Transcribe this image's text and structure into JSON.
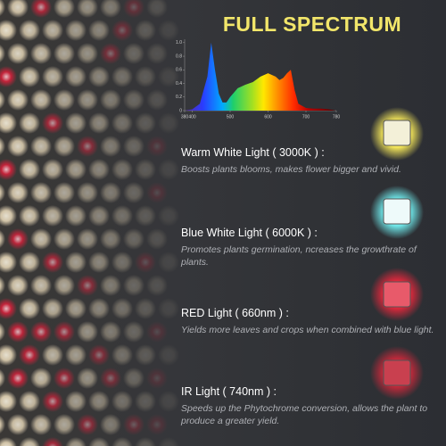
{
  "title": "FULL SPECTRUM",
  "chart_data": {
    "type": "area",
    "x": [
      380,
      400,
      420,
      440,
      450,
      460,
      470,
      480,
      490,
      500,
      520,
      540,
      560,
      580,
      600,
      620,
      630,
      640,
      650,
      660,
      670,
      680,
      700,
      720,
      740,
      760,
      780
    ],
    "values": [
      0,
      0.02,
      0.1,
      0.5,
      1.0,
      0.6,
      0.25,
      0.12,
      0.12,
      0.2,
      0.33,
      0.38,
      0.42,
      0.5,
      0.55,
      0.5,
      0.45,
      0.48,
      0.55,
      0.6,
      0.3,
      0.1,
      0.04,
      0.03,
      0.03,
      0.02,
      0
    ],
    "xlim": [
      380,
      780
    ],
    "xticks": [
      380,
      400,
      500,
      600,
      700,
      780
    ],
    "ylim": [
      0,
      1.05
    ],
    "yticks": [
      0,
      {
        "value": 0.2,
        "label": "0.2"
      },
      {
        "value": 0.4,
        "label": "0.4"
      },
      {
        "value": 0.6,
        "label": "0.6"
      },
      {
        "value": 0.8,
        "label": "0.8"
      },
      {
        "value": 1,
        "label": "1.0"
      }
    ],
    "grid": false
  },
  "features": [
    {
      "title": "Warm White Light ( 3000K ) :",
      "description": "Boosts plants blooms, makes flower bigger and vivid."
    },
    {
      "title": "Blue White Light ( 6000K ) :",
      "description": "Promotes plants germination, ncreases the growthrate of plants."
    },
    {
      "title": "RED Light ( 660nm ) :",
      "description": "Yields more leaves and crops when combined with blue light."
    },
    {
      "title": "IR Light ( 740nm ) :",
      "description": "Speeds up the Phytochrome conversion, allows the plant to produce a greater yield."
    }
  ]
}
